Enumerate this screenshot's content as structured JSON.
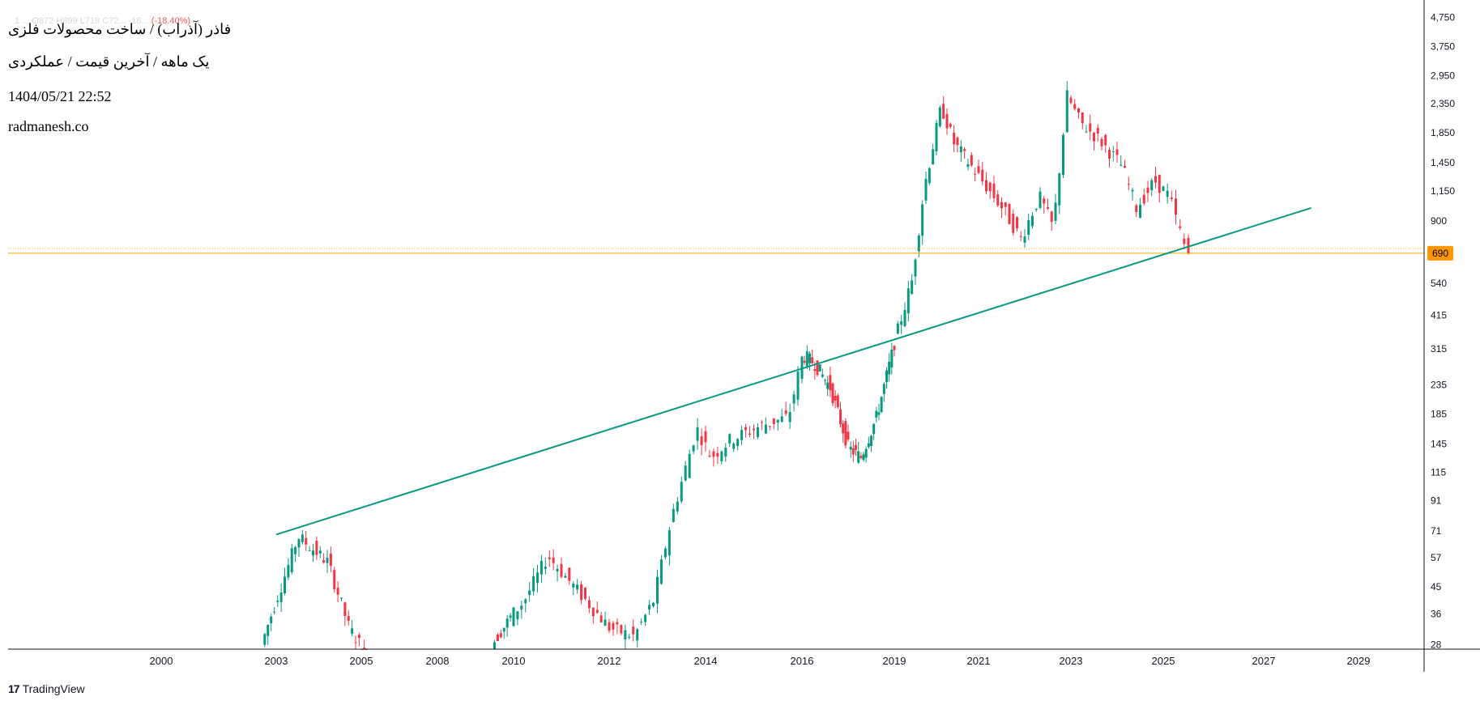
{
  "header": {
    "ohlc_text": "1 ... O872 H899 L719 C72... -16...",
    "change_text": "(-18.40%)",
    "title": "فاذر (آذراب) / ساخت محصولات فلزی",
    "subtitle": "یک ماهه / آخرین قیمت / عملکردی",
    "datetime": "1404/05/21 22:52",
    "site": "radmanesh.co"
  },
  "brand": {
    "logo": "17",
    "name": "TradingView"
  },
  "colors": {
    "up": "#089981",
    "down": "#f23645",
    "trend": "#089981",
    "price_line": "#f7a600",
    "last_price_bg": "#ff9800"
  },
  "last_price": {
    "label": "690",
    "value": 690
  },
  "chart_data": {
    "type": "candlestick",
    "y_scale": "log",
    "ylim": [
      27,
      5000
    ],
    "y_ticks": [
      "4,750",
      "3,750",
      "2,950",
      "2,350",
      "1,850",
      "1,450",
      "1,150",
      "900",
      "540",
      "415",
      "315",
      "235",
      "185",
      "145",
      "115",
      "91",
      "71",
      "57",
      "45",
      "36",
      "28"
    ],
    "x_ticks": [
      "2000",
      "2003",
      "2005",
      "2008",
      "2010",
      "2012",
      "2014",
      "2016",
      "2019",
      "2021",
      "2023",
      "2025",
      "2027",
      "2029"
    ],
    "trendline": {
      "from": {
        "date": "2003.0",
        "value": 69
      },
      "to": {
        "date": "2028.0",
        "value": 1000
      }
    },
    "anchors": [
      [
        "2002.7",
        28
      ],
      [
        "2003.3",
        50
      ],
      [
        "2003.6",
        68
      ],
      [
        "2004.3",
        55
      ],
      [
        "2004.8",
        32
      ],
      [
        "2005.2",
        26
      ],
      [
        "2009.5",
        28
      ],
      [
        "2010.3",
        40
      ],
      [
        "2010.8",
        58
      ],
      [
        "2011.5",
        42
      ],
      [
        "2012.1",
        32
      ],
      [
        "2012.6",
        30
      ],
      [
        "2013.0",
        40
      ],
      [
        "2013.4",
        82
      ],
      [
        "2013.9",
        165
      ],
      [
        "2014.2",
        130
      ],
      [
        "2014.6",
        150
      ],
      [
        "2015.3",
        170
      ],
      [
        "2015.8",
        180
      ],
      [
        "2016.1",
        300
      ],
      [
        "2016.5",
        280
      ],
      [
        "2017.0",
        230
      ],
      [
        "2017.6",
        140
      ],
      [
        "2018.0",
        130
      ],
      [
        "2018.5",
        180
      ],
      [
        "2019.0",
        300
      ],
      [
        "2019.5",
        550
      ],
      [
        "2019.8",
        1200
      ],
      [
        "2020.2",
        2300
      ],
      [
        "2020.5",
        1700
      ],
      [
        "2021.0",
        1350
      ],
      [
        "2021.6",
        1000
      ],
      [
        "2022.0",
        780
      ],
      [
        "2022.4",
        1100
      ],
      [
        "2022.7",
        850
      ],
      [
        "2023.0",
        2500
      ],
      [
        "2023.3",
        2000
      ],
      [
        "2023.7",
        1750
      ],
      [
        "2024.2",
        1400
      ],
      [
        "2024.5",
        1000
      ],
      [
        "2024.9",
        1250
      ],
      [
        "2025.2",
        1100
      ],
      [
        "2025.55",
        690
      ]
    ]
  }
}
